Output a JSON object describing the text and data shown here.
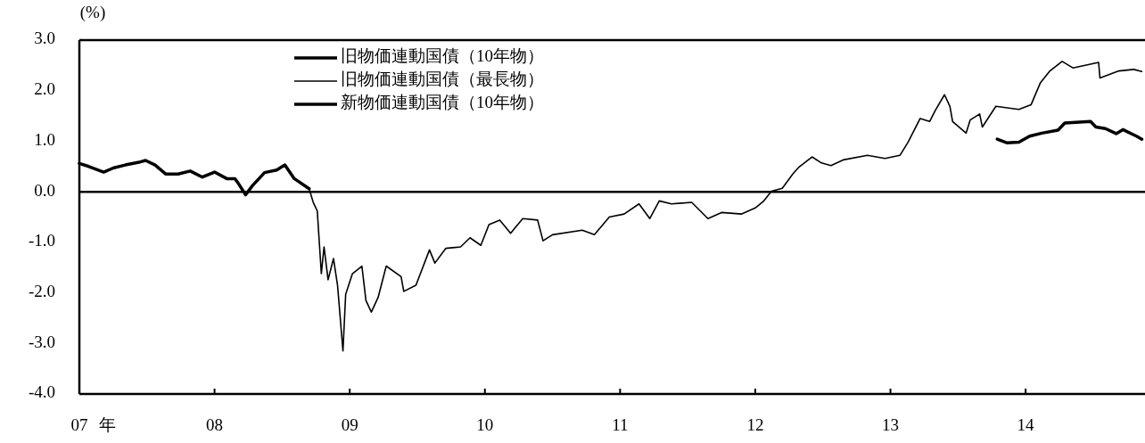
{
  "chart_data": {
    "type": "line",
    "ylabel": "(%)",
    "xlabel": "年",
    "xlim": [
      7,
      14.87
    ],
    "xticks": [
      {
        "value": 7,
        "label": "07"
      },
      {
        "value": 8,
        "label": "08"
      },
      {
        "value": 9,
        "label": "09"
      },
      10,
      11,
      12,
      13,
      14
    ],
    "ylim": [
      -4,
      3
    ],
    "yticks": [
      {
        "value": 3,
        "label": "3.0"
      },
      {
        "value": 2,
        "label": "2.0"
      },
      {
        "value": 1,
        "label": "1.0"
      },
      {
        "value": 0,
        "label": "0.0"
      },
      {
        "value": -1,
        "label": "-1.0"
      },
      {
        "value": -2,
        "label": "-2.0"
      },
      {
        "value": -3,
        "label": "-3.0"
      },
      {
        "value": -4,
        "label": "-4.0"
      }
    ],
    "ref_lines": [
      {
        "axis": "y",
        "value": 0,
        "color": "#000000"
      }
    ],
    "legend": "top",
    "grid": false,
    "marker": "none",
    "line_style": "solid",
    "series": [
      {
        "name": "旧物価連動国債（10年物）",
        "color": "#000000",
        "x": [
          7.0,
          7.07,
          7.18,
          7.25,
          7.34,
          7.45,
          7.49,
          7.56,
          7.64,
          7.73,
          7.82,
          7.91,
          8.0,
          8.09,
          8.15,
          8.17,
          8.23,
          8.28,
          8.37,
          8.46,
          8.52,
          8.59,
          8.7
        ],
        "values": [
          0.56,
          0.5,
          0.39,
          0.47,
          0.53,
          0.59,
          0.62,
          0.53,
          0.35,
          0.35,
          0.41,
          0.29,
          0.39,
          0.26,
          0.26,
          0.19,
          -0.06,
          0.12,
          0.38,
          0.43,
          0.53,
          0.26,
          0.06
        ]
      },
      {
        "name": "旧物価連動国債（最長物）",
        "color": "#000000",
        "x": [
          8.7,
          8.73,
          8.76,
          8.79,
          8.81,
          8.84,
          8.88,
          8.91,
          8.95,
          8.97,
          9.02,
          9.09,
          9.12,
          9.16,
          9.21,
          9.27,
          9.38,
          9.4,
          9.49,
          9.59,
          9.63,
          9.71,
          9.82,
          9.89,
          9.97,
          10.03,
          10.11,
          10.19,
          10.28,
          10.39,
          10.43,
          10.5,
          10.72,
          10.81,
          10.92,
          11.03,
          11.14,
          11.22,
          11.29,
          11.38,
          11.53,
          11.65,
          11.75,
          11.9,
          12.0,
          12.06,
          12.12,
          12.2,
          12.28,
          12.32,
          12.42,
          12.49,
          12.56,
          12.65,
          12.83,
          12.96,
          13.07,
          13.13,
          13.22,
          13.29,
          13.33,
          13.4,
          13.44,
          13.46,
          13.56,
          13.59,
          13.66,
          13.68,
          13.78,
          13.95,
          14.04,
          14.11,
          14.18,
          14.27,
          14.35,
          14.54,
          14.55,
          14.69,
          14.8,
          14.86
        ],
        "values": [
          0.06,
          -0.21,
          -0.38,
          -1.62,
          -1.09,
          -1.74,
          -1.32,
          -1.85,
          -3.15,
          -2.03,
          -1.62,
          -1.47,
          -2.15,
          -2.38,
          -2.09,
          -1.47,
          -1.68,
          -1.97,
          -1.85,
          -1.15,
          -1.41,
          -1.12,
          -1.09,
          -0.91,
          -1.06,
          -0.65,
          -0.56,
          -0.82,
          -0.53,
          -0.56,
          -0.97,
          -0.85,
          -0.76,
          -0.85,
          -0.5,
          -0.44,
          -0.24,
          -0.53,
          -0.18,
          -0.24,
          -0.21,
          -0.53,
          -0.41,
          -0.44,
          -0.32,
          -0.19,
          0.01,
          0.07,
          0.36,
          0.48,
          0.69,
          0.57,
          0.52,
          0.63,
          0.72,
          0.66,
          0.72,
          0.98,
          1.45,
          1.39,
          1.6,
          1.92,
          1.69,
          1.39,
          1.16,
          1.42,
          1.54,
          1.28,
          1.69,
          1.63,
          1.72,
          2.16,
          2.39,
          2.58,
          2.45,
          2.56,
          2.25,
          2.39,
          2.42,
          2.38
        ]
      },
      {
        "name": "新物価連動国債（10年物）",
        "color": "#000000",
        "x": [
          13.79,
          13.86,
          13.95,
          14.03,
          14.12,
          14.24,
          14.29,
          14.48,
          14.52,
          14.59,
          14.67,
          14.72,
          14.82,
          14.86
        ],
        "values": [
          1.04,
          0.97,
          0.98,
          1.1,
          1.16,
          1.22,
          1.36,
          1.39,
          1.28,
          1.25,
          1.15,
          1.23,
          1.1,
          1.04
        ]
      }
    ]
  }
}
